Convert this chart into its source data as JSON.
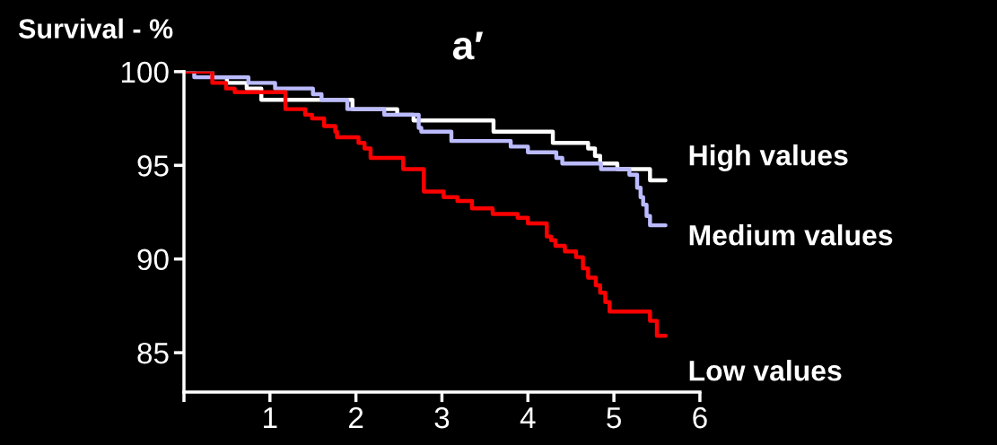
{
  "chart_data": {
    "type": "step",
    "title": "a′",
    "ylabel": "Survival - %",
    "xlim": [
      0,
      6
    ],
    "xticks": [
      {
        "value": 0,
        "label": null
      },
      1,
      2,
      3,
      4,
      5,
      6
    ],
    "ylim": [
      82.9,
      100
    ],
    "yticks": [
      85,
      90,
      95,
      100
    ],
    "grid": false,
    "legend": false,
    "series": [
      {
        "name": "High values",
        "color": "#ffffff",
        "x": [
          0,
          0.33,
          0.5,
          0.73,
          0.9,
          1.96,
          2.48,
          2.67,
          3.6,
          4.29,
          4.7,
          4.78,
          4.84,
          5.04,
          5.42,
          5.6
        ],
        "values": [
          100,
          99.7,
          99.4,
          99.1,
          98.5,
          98.0,
          97.7,
          97.4,
          96.8,
          96.2,
          95.9,
          95.5,
          95.1,
          94.8,
          94.2,
          94.2
        ]
      },
      {
        "name": "Medium values",
        "color": "#bbbbff",
        "x": [
          0,
          0.12,
          0.75,
          1.06,
          1.5,
          1.6,
          1.9,
          2.33,
          2.73,
          2.76,
          3.11,
          3.8,
          4.0,
          4.33,
          4.4,
          4.85,
          5.18,
          5.27,
          5.31,
          5.34,
          5.38,
          5.42,
          5.6
        ],
        "values": [
          100,
          99.7,
          99.4,
          99.1,
          98.8,
          98.5,
          98.0,
          97.7,
          97.0,
          96.8,
          96.3,
          96.0,
          95.7,
          95.4,
          95.1,
          94.8,
          94.5,
          93.8,
          93.3,
          92.9,
          92.3,
          91.8,
          91.8
        ]
      },
      {
        "name": "Low values",
        "color": "#ff0000",
        "x": [
          0,
          0.33,
          0.49,
          0.59,
          1.18,
          1.41,
          1.49,
          1.63,
          1.76,
          1.78,
          2.03,
          2.1,
          2.17,
          2.55,
          2.79,
          3.02,
          3.18,
          3.35,
          3.59,
          3.88,
          4.0,
          4.22,
          4.27,
          4.32,
          4.43,
          4.56,
          4.64,
          4.7,
          4.79,
          4.84,
          4.9,
          4.95,
          5.42,
          5.5,
          5.6
        ],
        "values": [
          100,
          99.4,
          99.1,
          98.9,
          98.0,
          97.7,
          97.5,
          97.1,
          96.8,
          96.5,
          96.2,
          95.9,
          95.4,
          94.8,
          93.6,
          93.3,
          93.1,
          92.7,
          92.4,
          92.2,
          91.9,
          91.2,
          91.0,
          90.7,
          90.4,
          90.1,
          89.5,
          89.0,
          88.6,
          88.2,
          87.7,
          87.2,
          86.7,
          85.9,
          85.9
        ]
      }
    ]
  }
}
